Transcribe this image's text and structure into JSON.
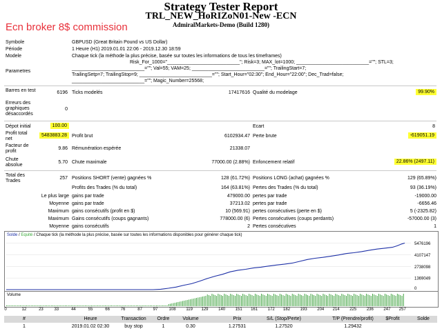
{
  "header": {
    "title": "Strategy Tester Report",
    "subtitle": "TRL_NEW_HoRIZoN01-New -ECN",
    "server": "AdmiralMarkets-Demo (Build 1280)",
    "promo": "Ecn broker 8$ commission"
  },
  "info": {
    "symbol_label": "Symbole",
    "symbol_value": "GBPUSD (Great Britain Pound vs US Dollar)",
    "period_label": "Période",
    "period_value": "1 Heure (H1) 2019.01.01 22:06 - 2019.12.30 18:59",
    "model_label": "Modele",
    "model_value": "Chaque tick (la méthode la plus précise, basée sur toutes les informations de tous les timeframes)",
    "params_label": "Parametres",
    "params_line1": "Risk_For_1000=\"___________________________\"; Risk=3; MAX_lot=1000; ___________________________=\"\"; STL=3;",
    "params_line2": "___________________________=\"\"; Val=55; VAM=25; ___________________________=\"\"; TrailingStart=7;",
    "params_line3": "TrailingSetp=7; TrailingStop=9; ___________________________=\"\"; Start_Hour=\"02:30\"; End_Hour=\"22:00\"; Dec_Trad=false;",
    "params_line4": "___________________________=\"\"; Magic_Number=25568;"
  },
  "stats": {
    "bars_label": "Barres en test",
    "bars_value": "6196",
    "ticks_label": "Ticks modelés",
    "ticks_value": "17417616",
    "quality_label": "Qualité du modelage",
    "quality_value": "99.90%",
    "errors_label": "Erreurs des graphiques désaccordés",
    "errors_value": "0",
    "deposit_label": "Dépot initial",
    "deposit_value": "100.00",
    "spread_label": "Ecart",
    "spread_value": "8",
    "net_label": "Profit total net",
    "net_value": "5483883.28",
    "gross_profit_label": "Profit brut",
    "gross_profit_value": "6102934.47",
    "gross_loss_label": "Perte brute",
    "gross_loss_value": "-619051.19",
    "pf_label": "Facteur de profit",
    "pf_value": "9.86",
    "payoff_label": "Rémunération espérée",
    "payoff_value": "21338.07",
    "dd_abs_label": "Chute absolue",
    "dd_abs_value": "5.70",
    "dd_max_label": "Chute maximale",
    "dd_max_value": "77000.00 (2.88%)",
    "dd_rel_label": "Enfoncement relatif",
    "dd_rel_value": "22.86% (2497.11)",
    "trades_label": "Total des Trades",
    "trades_value": "257",
    "short_label": "Positions SHORT (vente) gagnées %",
    "short_value": "128 (61.72%)",
    "long_label": "Positions LONG (achat) gagnées %",
    "long_value": "129 (65.89%)",
    "win_label": "Profits des Trades (% du total)",
    "win_value": "164 (63.81%)",
    "loss_label": "Pertes des Trades (% du total)",
    "loss_value": "93 (36.19%)",
    "largest_prefix": "Le plus large",
    "largest_win_label": "gains par trade",
    "largest_win_value": "479000.00",
    "largest_loss_label": "pertes par trade",
    "largest_loss_value": "-19000.00",
    "avg_prefix": "Moyenne",
    "avg_win_label": "gains par trade",
    "avg_win_value": "37213.02",
    "avg_loss_label": "pertes par trade",
    "avg_loss_value": "-6656.46",
    "max_prefix": "Maximum",
    "max_cons_win_label": "gains consécutifs (profit en $)",
    "max_cons_win_value": "10 (569.91)",
    "max_cons_loss_label": "pertes consécutives (perte en $)",
    "max_cons_loss_value": "5 (-2325.82)",
    "max2_prefix": "Maximum",
    "max_cons_profit_label": "Gains consécutifs (coups gagnants)",
    "max_cons_profit_value": "778000.00 (6)",
    "max_cons_lossamt_label": "Pertes consécutives (coups perdants)",
    "max_cons_lossamt_value": "-57000.00 (3)",
    "avg2_prefix": "Moyenne",
    "avg_cons_win_label": "gains consécutifs",
    "avg_cons_win_value": "2",
    "avg_cons_loss_label": "Pertes consécutives",
    "avg_cons_loss_value": "1"
  },
  "chart": {
    "legend_solde": "Solde",
    "legend_equite": "Equité",
    "legend_rest": " / Chaque tick (la méthode la plus précise, basée sur toutes les informations disponibles pour générer chaque tick)",
    "volume_label": "Volume",
    "line_color": "#1c2fa6",
    "equity_color": "#38a838",
    "volume_color": "#2e9a2e"
  },
  "chart_data": {
    "type": "line",
    "yticks": [
      "5476196",
      "4107147",
      "2738098",
      "1369049",
      "0"
    ],
    "ytick_values": [
      5476196,
      4107147,
      2738098,
      1369049,
      0
    ],
    "ylim": [
      0,
      5850000
    ],
    "xticks": [
      "0",
      "12",
      "23",
      "33",
      "44",
      "55",
      "66",
      "76",
      "87",
      "97",
      "108",
      "119",
      "129",
      "140",
      "151",
      "161",
      "172",
      "182",
      "193",
      "204",
      "214",
      "225",
      "236",
      "247",
      "257"
    ],
    "xlim": [
      0,
      262
    ],
    "series": [
      {
        "name": "Solde",
        "x": [
          0,
          95,
          100,
          105,
          110,
          115,
          120,
          125,
          130,
          135,
          140,
          145,
          150,
          155,
          160,
          165,
          170,
          175,
          180,
          185,
          190,
          195,
          200,
          205,
          210,
          215,
          220,
          225,
          230,
          235,
          240,
          245,
          250,
          253,
          256,
          258
        ],
        "y": [
          0,
          0,
          50000,
          160000,
          300000,
          520000,
          700000,
          980000,
          1300000,
          1580000,
          1800000,
          2100000,
          2280000,
          2400000,
          2550000,
          2650000,
          2780000,
          2900000,
          3000000,
          3120000,
          3330000,
          3550000,
          3700000,
          3800000,
          3930000,
          4080000,
          4250000,
          4350000,
          4480000,
          4640000,
          4780000,
          4880000,
          4990000,
          5160000,
          5380000,
          5483883
        ]
      }
    ]
  },
  "trades_table": {
    "columns": [
      "#",
      "Heure",
      "Transaction",
      "Ordre",
      "Volume",
      "Prix",
      "S/L (Stop/Perte)",
      "T/P (Prendre/profit)",
      "$Profit",
      "Solde"
    ],
    "row": [
      "1",
      "2019.01.02 02:30",
      "buy stop",
      "1",
      "0.30",
      "1.27531",
      "1.27520",
      "1.29432",
      "",
      ""
    ]
  }
}
